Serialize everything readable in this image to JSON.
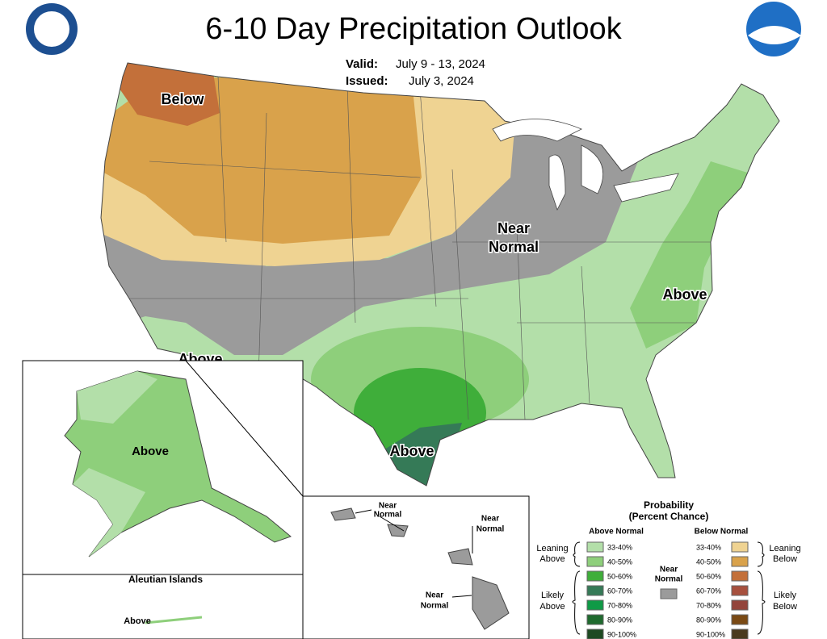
{
  "header": {
    "title": "6-10 Day Precipitation Outlook",
    "valid_label": "Valid:",
    "valid": "July 9 - 13, 2024",
    "issued_label": "Issued:",
    "issued": "July 3, 2024"
  },
  "map_labels": {
    "below": "Below",
    "near_normal": [
      "Near",
      "Normal"
    ],
    "above_east": "Above",
    "above_west": "Above",
    "above_texas": "Above"
  },
  "alaska": {
    "label": "Above"
  },
  "aleutians": {
    "title": "Aleutian Islands",
    "label": "Above"
  },
  "hawaii": {
    "labels": [
      [
        "Near",
        "Normal"
      ],
      [
        "Near",
        "Normal"
      ],
      [
        "Near",
        "Normal"
      ]
    ]
  },
  "legend": {
    "title": [
      "Probability",
      "(Percent Chance)"
    ],
    "above_header": "Above Normal",
    "below_header": "Below Normal",
    "near_label": [
      "Near",
      "Normal"
    ],
    "near_color": "#9b9b9b",
    "above_rows": [
      "33-40%",
      "40-50%",
      "50-60%",
      "60-70%",
      "70-80%",
      "80-90%",
      "90-100%"
    ],
    "above_colors": [
      "#b3dfa9",
      "#8ecf7b",
      "#3fae3a",
      "#357a57",
      "#0f9a46",
      "#1f6a2e",
      "#1e4a22"
    ],
    "below_rows": [
      "33-40%",
      "40-50%",
      "50-60%",
      "60-70%",
      "70-80%",
      "80-90%",
      "90-100%"
    ],
    "below_colors": [
      "#efd392",
      "#d9a24b",
      "#c3703a",
      "#a7503e",
      "#93443b",
      "#7a4a14",
      "#4a3a1e"
    ],
    "leaning_above": [
      "Leaning",
      "Above"
    ],
    "likely_above": [
      "Likely",
      "Above"
    ],
    "leaning_below": [
      "Leaning",
      "Below"
    ],
    "likely_below": [
      "Likely",
      "Below"
    ]
  }
}
